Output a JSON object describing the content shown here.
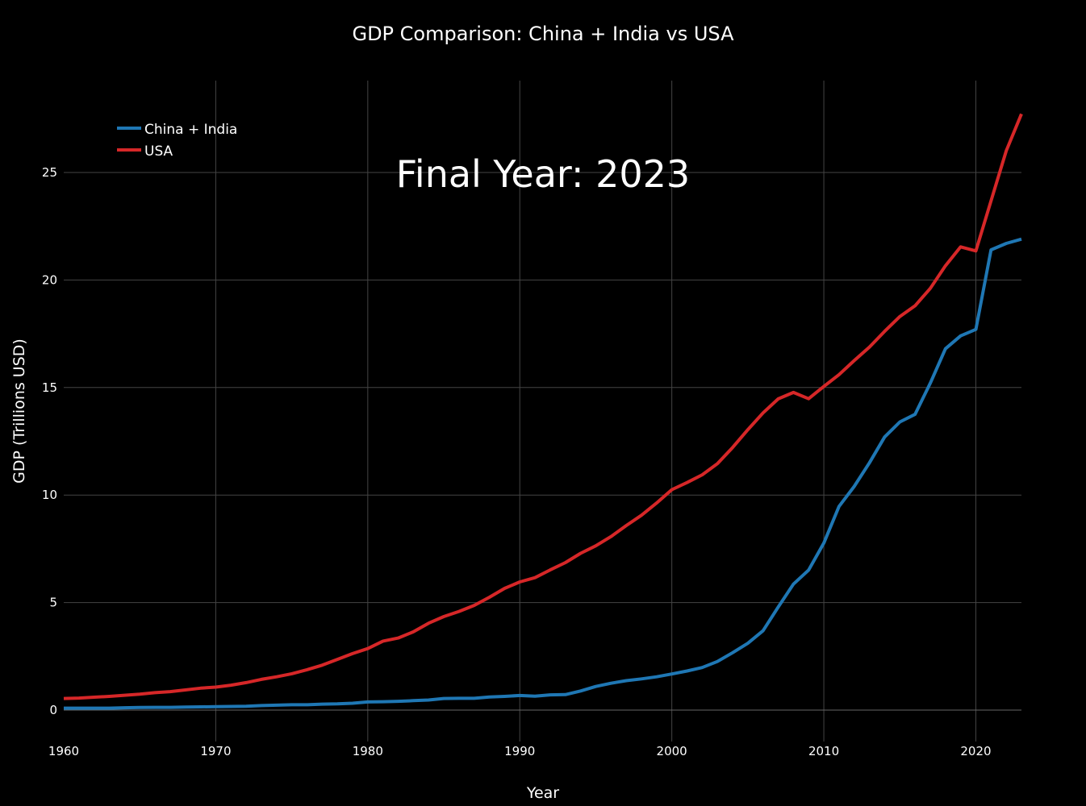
{
  "chart_data": {
    "type": "line",
    "title": "GDP Comparison: China + India vs USA",
    "xlabel": "Year",
    "ylabel": "GDP (Trillions USD)",
    "annotation": "Final Year: 2023",
    "xlim": [
      1960,
      2023
    ],
    "ylim": [
      -1.46,
      29.27
    ],
    "xticks": [
      1960,
      1970,
      1980,
      1990,
      2000,
      2010,
      2020
    ],
    "yticks": [
      0,
      5,
      10,
      15,
      20,
      25
    ],
    "grid": true,
    "legend_position": "top-left",
    "background": "#000000",
    "x": [
      1960,
      1961,
      1962,
      1963,
      1964,
      1965,
      1966,
      1967,
      1968,
      1969,
      1970,
      1971,
      1972,
      1973,
      1974,
      1975,
      1976,
      1977,
      1978,
      1979,
      1980,
      1981,
      1982,
      1983,
      1984,
      1985,
      1986,
      1987,
      1988,
      1989,
      1990,
      1991,
      1992,
      1993,
      1994,
      1995,
      1996,
      1997,
      1998,
      1999,
      2000,
      2001,
      2002,
      2003,
      2004,
      2005,
      2006,
      2007,
      2008,
      2009,
      2010,
      2011,
      2012,
      2013,
      2014,
      2015,
      2016,
      2017,
      2018,
      2019,
      2020,
      2021,
      2022,
      2023
    ],
    "series": [
      {
        "name": "China + India",
        "color": "#1f77b4",
        "values": [
          0.09,
          0.09,
          0.09,
          0.09,
          0.11,
          0.12,
          0.13,
          0.13,
          0.14,
          0.15,
          0.16,
          0.17,
          0.18,
          0.21,
          0.23,
          0.25,
          0.25,
          0.28,
          0.29,
          0.32,
          0.38,
          0.39,
          0.41,
          0.44,
          0.47,
          0.54,
          0.55,
          0.55,
          0.61,
          0.64,
          0.68,
          0.65,
          0.71,
          0.72,
          0.89,
          1.1,
          1.25,
          1.37,
          1.45,
          1.55,
          1.68,
          1.82,
          1.98,
          2.26,
          2.67,
          3.11,
          3.69,
          4.79,
          5.86,
          6.51,
          7.77,
          9.47,
          10.4,
          11.5,
          12.7,
          13.4,
          13.75,
          15.2,
          16.8,
          17.4,
          17.7,
          21.4,
          21.7,
          21.9
        ]
      },
      {
        "name": "USA",
        "color": "#d62728",
        "values": [
          0.54,
          0.56,
          0.6,
          0.64,
          0.69,
          0.74,
          0.81,
          0.86,
          0.94,
          1.02,
          1.07,
          1.16,
          1.28,
          1.43,
          1.55,
          1.69,
          1.88,
          2.09,
          2.36,
          2.63,
          2.86,
          3.21,
          3.35,
          3.64,
          4.04,
          4.35,
          4.59,
          4.87,
          5.25,
          5.66,
          5.96,
          6.16,
          6.52,
          6.86,
          7.29,
          7.64,
          8.07,
          8.58,
          9.06,
          9.63,
          10.25,
          10.58,
          10.94,
          11.46,
          12.21,
          13.04,
          13.82,
          14.47,
          14.77,
          14.48,
          15.05,
          15.6,
          16.25,
          16.88,
          17.61,
          18.3,
          18.8,
          19.61,
          20.66,
          21.54,
          21.35,
          23.68,
          26.01,
          27.72
        ]
      }
    ]
  }
}
